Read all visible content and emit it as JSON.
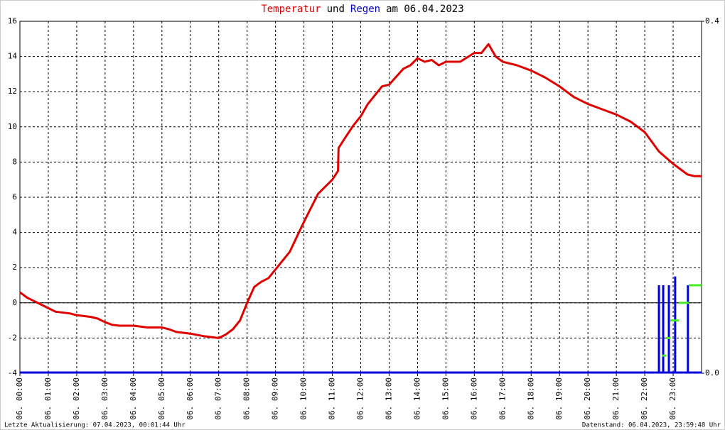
{
  "chart_data": {
    "type": "line",
    "title_parts": [
      {
        "text": "Temperatur",
        "color": "#e00000"
      },
      {
        "text": "und",
        "color": "#000000"
      },
      {
        "text": "Regen",
        "color": "#0000cc"
      },
      {
        "text": "am 06.04.2023",
        "color": "#000000"
      }
    ],
    "footer_left": "Letzte Aktualisierung: 07.04.2023, 00:01:44 Uhr",
    "footer_right": "Datenstand: 06.04.2023, 23:59:48 Uhr",
    "xlim": [
      0,
      24
    ],
    "xticks": [
      {
        "value": 0,
        "label": "06. 00:00"
      },
      {
        "value": 1,
        "label": "06. 01:00"
      },
      {
        "value": 2,
        "label": "06. 02:00"
      },
      {
        "value": 3,
        "label": "06. 03:00"
      },
      {
        "value": 4,
        "label": "06. 04:00"
      },
      {
        "value": 5,
        "label": "06. 05:00"
      },
      {
        "value": 6,
        "label": "06. 06:00"
      },
      {
        "value": 7,
        "label": "06. 07:00"
      },
      {
        "value": 8,
        "label": "06. 08:00"
      },
      {
        "value": 9,
        "label": "06. 09:00"
      },
      {
        "value": 10,
        "label": "06. 10:00"
      },
      {
        "value": 11,
        "label": "06. 11:00"
      },
      {
        "value": 12,
        "label": "06. 12:00"
      },
      {
        "value": 13,
        "label": "06. 13:00"
      },
      {
        "value": 14,
        "label": "06. 14:00"
      },
      {
        "value": 15,
        "label": "06. 15:00"
      },
      {
        "value": 16,
        "label": "06. 16:00"
      },
      {
        "value": 17,
        "label": "06. 17:00"
      },
      {
        "value": 18,
        "label": "06. 18:00"
      },
      {
        "value": 19,
        "label": "06. 19:00"
      },
      {
        "value": 20,
        "label": "06. 20:00"
      },
      {
        "value": 21,
        "label": "06. 21:00"
      },
      {
        "value": 22,
        "label": "06. 22:00"
      },
      {
        "value": 23,
        "label": "06. 23:00"
      }
    ],
    "ylim": [
      -4,
      16
    ],
    "yticks": [
      -4,
      -2,
      0,
      2,
      4,
      6,
      8,
      10,
      12,
      14,
      16
    ],
    "y2lim": [
      0,
      0.4
    ],
    "y2ticks": [
      {
        "value": 0,
        "label": "0.0"
      },
      {
        "value": 0.4,
        "label": "0.4"
      }
    ],
    "grid": true,
    "zero_line": true,
    "series": [
      {
        "name": "Temperatur",
        "color": "#e00000",
        "kind": "line",
        "x": [
          0,
          0.25,
          0.5,
          0.75,
          1,
          1.25,
          1.5,
          1.75,
          2,
          2.5,
          2.75,
          3,
          3.25,
          3.5,
          4,
          4.5,
          5,
          5.25,
          5.5,
          6,
          6.5,
          7,
          7.25,
          7.5,
          7.75,
          8,
          8.25,
          8.5,
          8.75,
          9,
          9.5,
          10,
          10.5,
          11,
          11.2,
          11.22,
          11.5,
          11.75,
          12,
          12.25,
          12.5,
          12.75,
          13,
          13.5,
          13.75,
          14,
          14.25,
          14.5,
          14.75,
          15,
          15.5,
          16,
          16.25,
          16.5,
          16.75,
          17,
          17.5,
          18,
          18.5,
          19,
          19.5,
          20,
          20.5,
          21,
          21.5,
          22,
          22.5,
          23,
          23.5,
          23.75,
          24
        ],
        "values": [
          0.6,
          0.3,
          0.1,
          -0.1,
          -0.3,
          -0.5,
          -0.55,
          -0.6,
          -0.7,
          -0.8,
          -0.9,
          -1.1,
          -1.25,
          -1.3,
          -1.3,
          -1.4,
          -1.4,
          -1.5,
          -1.65,
          -1.75,
          -1.9,
          -2.0,
          -1.8,
          -1.5,
          -1.0,
          0.0,
          0.9,
          1.2,
          1.4,
          1.9,
          2.9,
          4.6,
          6.2,
          7.0,
          7.5,
          8.8,
          9.5,
          10.1,
          10.6,
          11.3,
          11.8,
          12.3,
          12.4,
          13.3,
          13.5,
          13.9,
          13.7,
          13.8,
          13.5,
          13.7,
          13.7,
          14.2,
          14.2,
          14.7,
          14.0,
          13.7,
          13.5,
          13.2,
          12.8,
          12.3,
          11.7,
          11.3,
          11.0,
          10.7,
          10.3,
          9.7,
          8.6,
          7.9,
          7.3,
          7.2,
          7.2
        ]
      },
      {
        "name": "Regen",
        "color": "#0000dd",
        "kind": "bar",
        "axis": "y2",
        "x": [
          22.5,
          22.65,
          22.85,
          23.07,
          23.52
        ],
        "values": [
          0.1,
          0.1,
          0.1,
          0.11,
          0.1
        ]
      },
      {
        "color": "#44ee22",
        "kind": "step",
        "axis": "y2",
        "x": [
          22.6,
          22.75,
          22.9,
          23.2,
          23.55
        ],
        "values": [
          0.02,
          0.04,
          0.06,
          0.08,
          0.1
        ]
      }
    ]
  }
}
